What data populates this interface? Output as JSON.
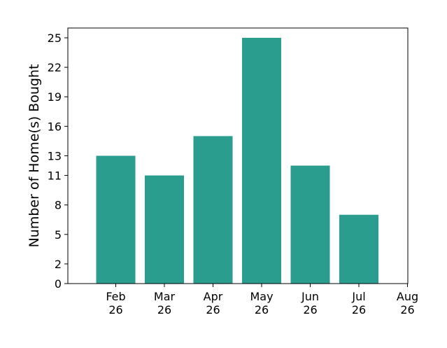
{
  "chart_data": {
    "type": "bar",
    "title": "",
    "xlabel": "",
    "ylabel": "Number of Home(s) Bought",
    "categories": [
      "Feb 26",
      "Mar 26",
      "Apr 26",
      "May 26",
      "Jun 26",
      "Jul 26"
    ],
    "values": [
      13,
      11,
      15,
      25,
      12,
      7
    ],
    "x_ticks": [
      {
        "line1": "Feb",
        "line2": "26"
      },
      {
        "line1": "Mar",
        "line2": "26"
      },
      {
        "line1": "Apr",
        "line2": "26"
      },
      {
        "line1": "May",
        "line2": "26"
      },
      {
        "line1": "Jun",
        "line2": "26"
      },
      {
        "line1": "Jul",
        "line2": "26"
      },
      {
        "line1": "Aug",
        "line2": "26"
      }
    ],
    "y_ticks": [
      0,
      2,
      5,
      8,
      11,
      13,
      16,
      19,
      22,
      25
    ],
    "ylim": [
      0,
      25.0
    ],
    "bar_color": "#2a9d8f",
    "grid": false,
    "legend": "none"
  }
}
